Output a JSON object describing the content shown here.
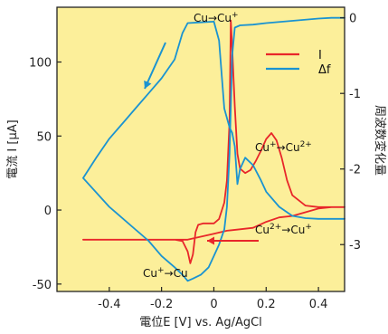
{
  "chart_data": {
    "type": "line",
    "xlabel": "電位E [V] vs. Ag/AgCl",
    "ylabel": "電流 I [μA]",
    "y2label": "周波数変化量",
    "xlim": [
      -0.6,
      0.5
    ],
    "ylim": [
      -55,
      137
    ],
    "y2lim": [
      -3.62,
      0.14
    ],
    "x_ticks": [
      -0.4,
      -0.2,
      0,
      0.2,
      0.4
    ],
    "x_tick_labels": [
      "-0.4",
      "-0.2",
      "0",
      "0.2",
      "0.4"
    ],
    "y_ticks": [
      -50,
      0,
      50,
      100
    ],
    "y_tick_labels": [
      "-50",
      "0",
      "50",
      "100"
    ],
    "y2_ticks": [
      0,
      -1,
      -2,
      -3
    ],
    "y2_tick_labels": [
      "0",
      "-1",
      "-2",
      "-3"
    ],
    "background_color": "#fcef9a",
    "grid": false,
    "legend_position": "top-right",
    "series": [
      {
        "name": "I",
        "axis": "left",
        "color": "#e8262a",
        "x": [
          -0.2,
          -0.15,
          -0.12,
          -0.1,
          -0.09,
          -0.08,
          -0.07,
          -0.06,
          -0.04,
          -0.02,
          0.0,
          0.02,
          0.04,
          0.05,
          0.06,
          0.065,
          0.07,
          0.08,
          0.09,
          0.1,
          0.12,
          0.14,
          0.16,
          0.18,
          0.2,
          0.22,
          0.24,
          0.26,
          0.28,
          0.3,
          0.35,
          0.4,
          0.45,
          0.5,
          0.45,
          0.4,
          0.3,
          0.25,
          0.2,
          0.15,
          0.1,
          0.05,
          0.0,
          -0.05,
          -0.1,
          -0.2,
          -0.3,
          -0.5
        ],
        "y": [
          -20,
          -20,
          -21,
          -28,
          -36,
          -30,
          -15,
          -10,
          -9,
          -9,
          -9,
          -6,
          5,
          20,
          60,
          128,
          110,
          70,
          38,
          28,
          25,
          27,
          33,
          40,
          48,
          52,
          47,
          35,
          20,
          10,
          3,
          2,
          2,
          2,
          2,
          1,
          -4,
          -5,
          -8,
          -12,
          -13,
          -14,
          -16,
          -18,
          -20,
          -20,
          -20,
          -20
        ]
      },
      {
        "name": "Δf",
        "axis": "right",
        "color": "#1a93d1",
        "x": [
          0.5,
          0.45,
          0.4,
          0.3,
          0.2,
          0.15,
          0.1,
          0.08,
          0.07,
          0.06,
          0.05,
          0.04,
          0.02,
          0.0,
          -0.02,
          -0.05,
          -0.08,
          -0.1,
          -0.12,
          -0.15,
          -0.2,
          -0.25,
          -0.3,
          -0.4,
          -0.5,
          -0.45,
          -0.4,
          -0.35,
          -0.3,
          -0.25,
          -0.2,
          -0.15,
          -0.12,
          -0.1,
          -0.05,
          0.0,
          0.02,
          0.04,
          0.06,
          0.07,
          0.08,
          0.09,
          0.1,
          0.12,
          0.15,
          0.18,
          0.2,
          0.25,
          0.3,
          0.35,
          0.4,
          0.5
        ],
        "y": [
          0.0,
          0.0,
          -0.01,
          -0.04,
          -0.07,
          -0.09,
          -0.1,
          -0.13,
          -0.5,
          -1.8,
          -2.5,
          -2.8,
          -3.0,
          -3.15,
          -3.3,
          -3.4,
          -3.45,
          -3.48,
          -3.4,
          -3.3,
          -3.15,
          -2.95,
          -2.8,
          -2.5,
          -2.12,
          -1.85,
          -1.6,
          -1.4,
          -1.2,
          -1.0,
          -0.8,
          -0.55,
          -0.2,
          -0.07,
          -0.06,
          -0.05,
          -0.3,
          -1.2,
          -1.45,
          -1.52,
          -1.7,
          -2.2,
          -2.0,
          -1.85,
          -1.95,
          -2.15,
          -2.3,
          -2.5,
          -2.62,
          -2.65,
          -2.66,
          -2.66
        ]
      }
    ],
    "annotations": [
      {
        "text": "Cu→Cu",
        "sup": "+"
      },
      {
        "text": "Cu",
        "sup": "+",
        "text2": "→Cu",
        "sup2": "2+"
      },
      {
        "text": "Cu",
        "sup": "2+",
        "text2": "→Cu",
        "sup2": "+"
      },
      {
        "text": "Cu",
        "sup": "+",
        "text2": "→Cu",
        "sup2": ""
      }
    ]
  }
}
